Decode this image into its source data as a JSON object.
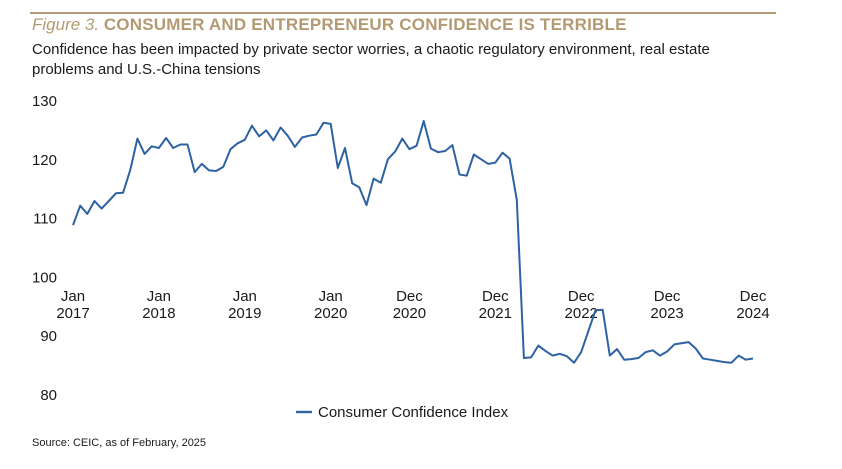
{
  "header": {
    "figure_label": "Figure 3.",
    "title": "CONSUMER AND ENTREPRENEUR CONFIDENCE IS TERRIBLE",
    "subtitle": "Confidence has been impacted by private sector worries, a chaotic regulatory environment, real estate problems and U.S.-China tensions"
  },
  "source": "Source: CEIC, as of February, 2025",
  "colors": {
    "accent": "#b39a72",
    "series": "#2e62a3"
  },
  "chart_data": {
    "type": "line",
    "title": "",
    "xlabel": "",
    "ylabel": "",
    "ylim": [
      80,
      130
    ],
    "y_ticks": [
      80,
      90,
      100,
      110,
      120,
      130
    ],
    "x_tick_labels": [
      {
        "line1": "Jan",
        "line2": "2017",
        "x": "2017-01"
      },
      {
        "line1": "Jan",
        "line2": "2018",
        "x": "2018-01"
      },
      {
        "line1": "Jan",
        "line2": "2019",
        "x": "2019-01"
      },
      {
        "line1": "Jan",
        "line2": "2020",
        "x": "2020-01"
      },
      {
        "line1": "Dec",
        "line2": "2020",
        "x": "2020-12"
      },
      {
        "line1": "Dec",
        "line2": "2021",
        "x": "2021-12"
      },
      {
        "line1": "Dec",
        "line2": "2022",
        "x": "2022-12"
      },
      {
        "line1": "Dec",
        "line2": "2023",
        "x": "2023-12"
      },
      {
        "line1": "Dec",
        "line2": "2024",
        "x": "2024-12"
      }
    ],
    "legend": {
      "position": "bottom-center"
    },
    "grid": false,
    "series": [
      {
        "name": "Consumer Confidence Index",
        "color": "#2e62a3",
        "x": [
          "2017-01",
          "2017-02",
          "2017-03",
          "2017-04",
          "2017-05",
          "2017-06",
          "2017-07",
          "2017-08",
          "2017-09",
          "2017-10",
          "2017-11",
          "2017-12",
          "2018-01",
          "2018-02",
          "2018-03",
          "2018-04",
          "2018-05",
          "2018-06",
          "2018-07",
          "2018-08",
          "2018-09",
          "2018-10",
          "2018-11",
          "2018-12",
          "2019-01",
          "2019-02",
          "2019-03",
          "2019-04",
          "2019-05",
          "2019-06",
          "2019-07",
          "2019-08",
          "2019-09",
          "2019-10",
          "2019-11",
          "2019-12",
          "2020-01",
          "2020-02",
          "2020-03",
          "2020-04",
          "2020-05",
          "2020-06",
          "2020-07",
          "2020-08",
          "2020-09",
          "2020-10",
          "2020-11",
          "2020-12",
          "2021-01",
          "2021-02",
          "2021-03",
          "2021-04",
          "2021-05",
          "2021-06",
          "2021-07",
          "2021-08",
          "2021-09",
          "2021-10",
          "2021-11",
          "2021-12",
          "2022-01",
          "2022-02",
          "2022-03",
          "2022-04",
          "2022-05",
          "2022-06",
          "2022-07",
          "2022-08",
          "2022-09",
          "2022-10",
          "2022-11",
          "2022-12",
          "2023-01",
          "2023-02",
          "2023-03",
          "2023-04",
          "2023-05",
          "2023-06",
          "2023-07",
          "2023-08",
          "2023-09",
          "2023-10",
          "2023-11",
          "2023-12",
          "2024-01",
          "2024-02",
          "2024-03",
          "2024-04",
          "2024-05",
          "2024-06",
          "2024-07",
          "2024-08",
          "2024-09",
          "2024-10",
          "2024-11",
          "2024-12"
        ],
        "values": [
          108.9,
          112.2,
          110.8,
          113.0,
          111.7,
          113.0,
          114.3,
          114.4,
          118.3,
          123.6,
          121.0,
          122.3,
          122.0,
          123.7,
          122.0,
          122.6,
          122.6,
          117.9,
          119.3,
          118.2,
          118.1,
          118.8,
          121.8,
          122.8,
          123.4,
          125.8,
          124.0,
          125.0,
          123.3,
          125.5,
          124.1,
          122.2,
          123.8,
          124.1,
          124.3,
          126.3,
          126.1,
          118.6,
          122.0,
          116.0,
          115.3,
          112.3,
          116.8,
          116.1,
          120.1,
          121.4,
          123.6,
          121.8,
          122.4,
          126.6,
          121.9,
          121.3,
          121.5,
          122.5,
          117.5,
          117.3,
          120.9,
          120.1,
          119.3,
          119.5,
          121.2,
          120.2,
          113.2,
          86.3,
          86.4,
          88.4,
          87.5,
          86.7,
          87.0,
          86.6,
          85.5,
          87.3,
          90.9,
          94.4,
          94.5,
          86.7,
          87.8,
          86.0,
          86.1,
          86.3,
          87.3,
          87.6,
          86.7,
          87.4,
          88.6,
          88.8,
          89.0,
          87.9,
          86.2,
          86.0,
          85.8,
          85.6,
          85.5,
          86.7,
          86.0,
          86.2
        ]
      }
    ]
  }
}
